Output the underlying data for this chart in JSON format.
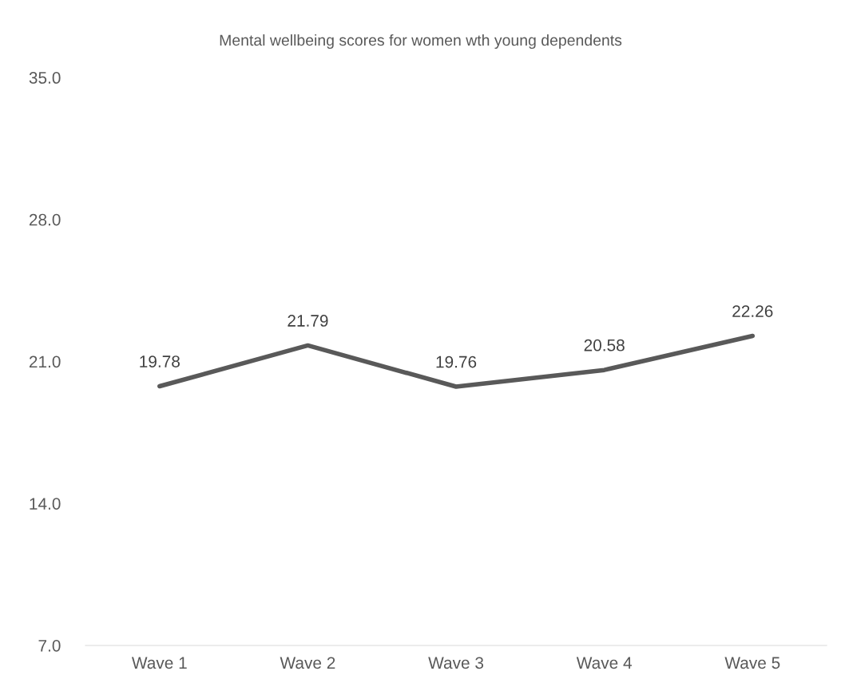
{
  "chart_data": {
    "type": "line",
    "title": "Mental wellbeing scores for women wth young dependents",
    "categories": [
      "Wave 1",
      "Wave 2",
      "Wave 3",
      "Wave 4",
      "Wave 5"
    ],
    "series": [
      {
        "color": "#595959",
        "values": [
          19.78,
          21.79,
          19.76,
          20.58,
          22.26
        ]
      }
    ],
    "ylim": [
      7.0,
      35.0
    ],
    "yticks": [
      {
        "value": 7,
        "label": "7.0"
      },
      {
        "value": 14,
        "label": "14.0"
      },
      {
        "value": 21,
        "label": "21.0"
      },
      {
        "value": 28,
        "label": "28.0"
      },
      {
        "value": 35,
        "label": "35.0"
      }
    ],
    "data_labels": true,
    "grid": false,
    "legend": false,
    "marker": "none",
    "line_style": "solid"
  }
}
